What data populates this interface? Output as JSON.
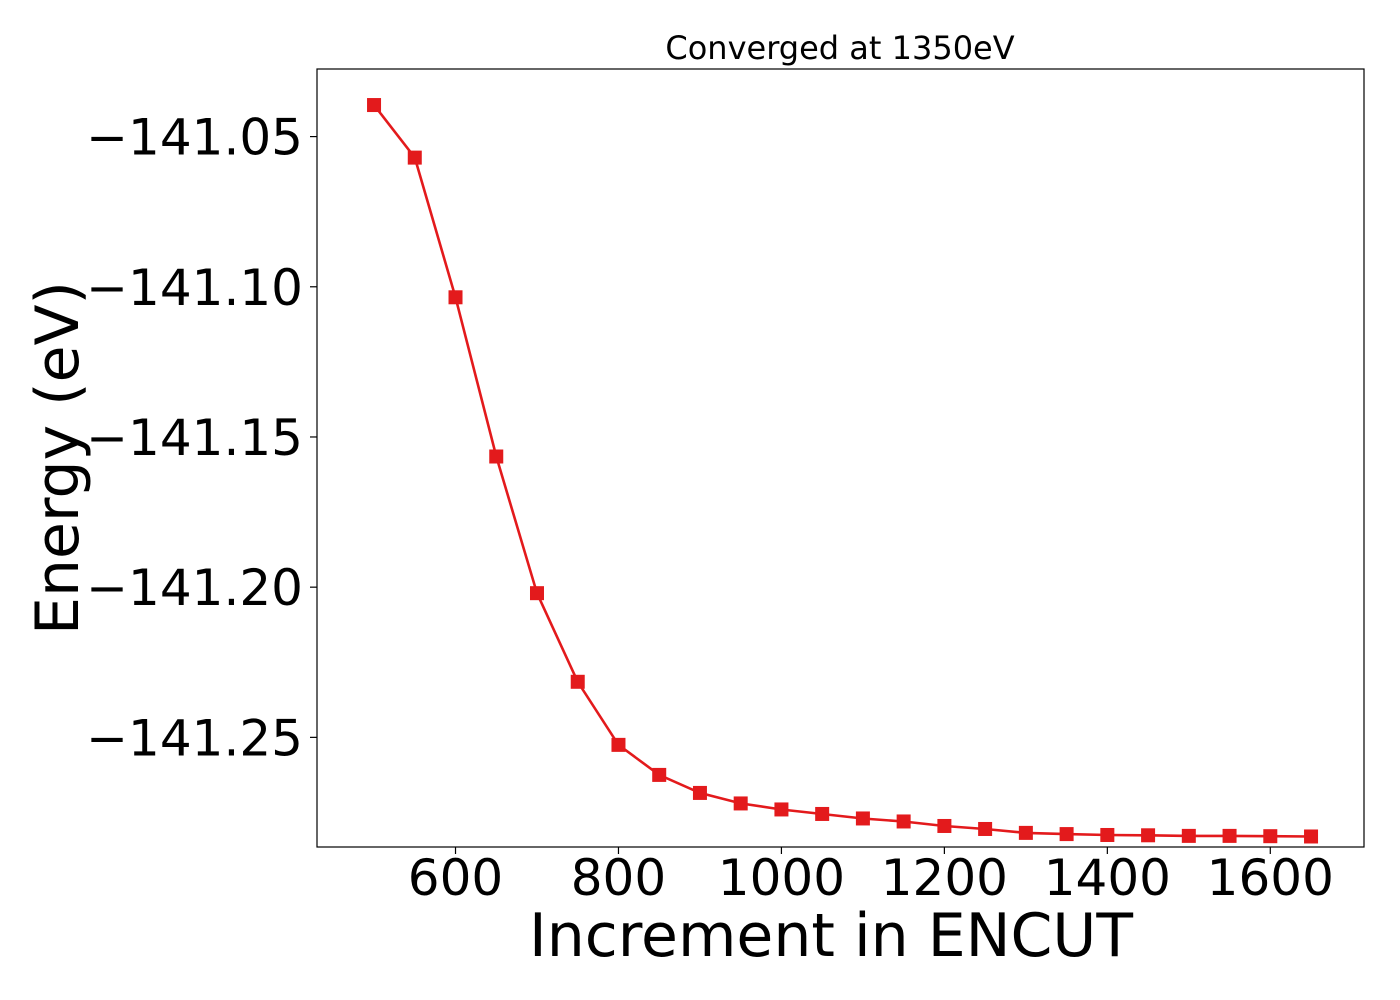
{
  "chart_data": {
    "type": "line",
    "title": "Converged at 1350eV",
    "xlabel": "Increment in ENCUT",
    "ylabel": "Energy (eV)",
    "xlim": [
      430,
      1715
    ],
    "ylim": [
      -141.2865,
      -141.0275
    ],
    "xticks": [
      600,
      800,
      1000,
      1200,
      1400,
      1600
    ],
    "yticks": [
      -141.05,
      -141.1,
      -141.15,
      -141.2,
      -141.25
    ],
    "xtick_labels": [
      "600",
      "800",
      "1000",
      "1200",
      "1400",
      "1600"
    ],
    "ytick_labels": [
      "−141.05",
      "−141.10",
      "−141.15",
      "−141.20",
      "−141.25"
    ],
    "grid": false,
    "series": [
      {
        "color": "#e31a1c",
        "marker": "square",
        "x": [
          500,
          550,
          600,
          650,
          700,
          750,
          800,
          850,
          900,
          950,
          1000,
          1050,
          1100,
          1150,
          1200,
          1250,
          1300,
          1350,
          1400,
          1450,
          1500,
          1550,
          1600,
          1650
        ],
        "y": [
          -141.0395,
          -141.057,
          -141.1035,
          -141.1565,
          -141.202,
          -141.2315,
          -141.2525,
          -141.2625,
          -141.2685,
          -141.272,
          -141.274,
          -141.2755,
          -141.277,
          -141.278,
          -141.2795,
          -141.2805,
          -141.2818,
          -141.2822,
          -141.2825,
          -141.2826,
          -141.2828,
          -141.2828,
          -141.2829,
          -141.283
        ]
      }
    ]
  }
}
